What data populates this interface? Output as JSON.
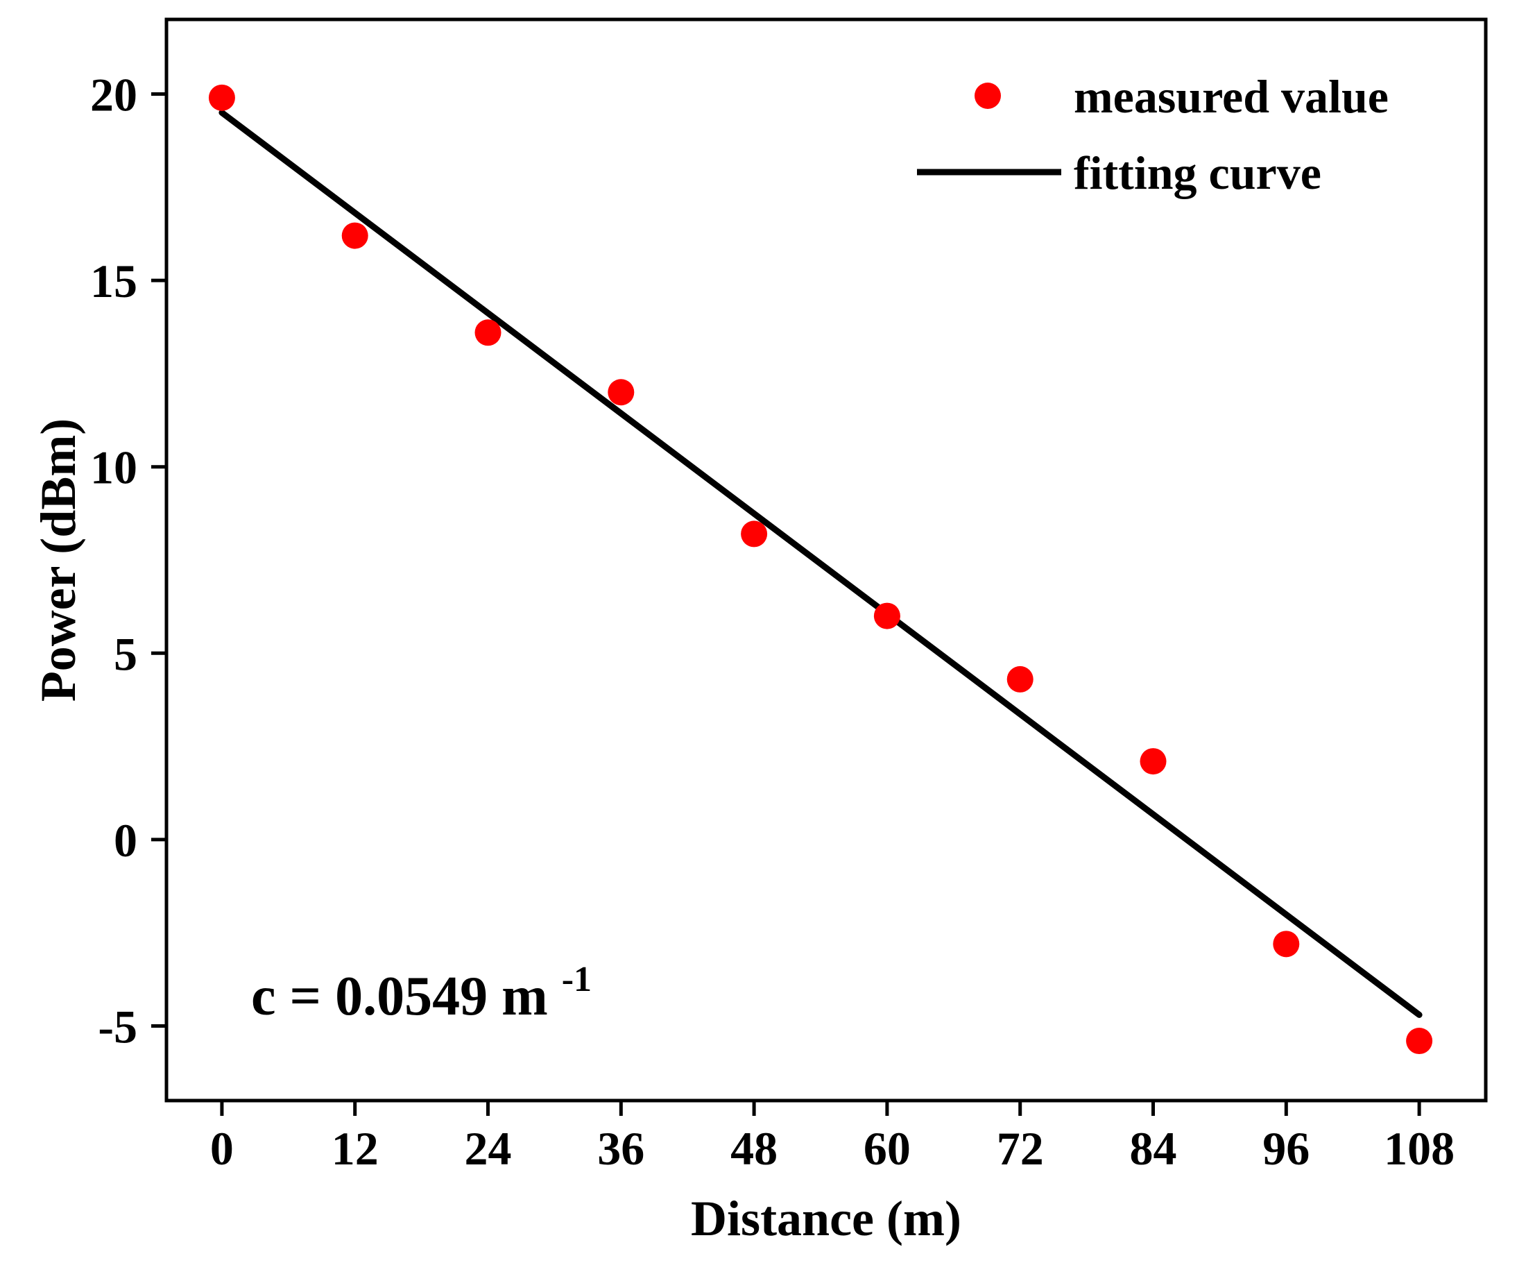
{
  "chart_data": {
    "type": "scatter",
    "title": "",
    "xlabel": "Distance (m)",
    "ylabel": "Power (dBm)",
    "xlim": [
      -5,
      114
    ],
    "ylim": [
      -7,
      22
    ],
    "xticks": [
      0,
      12,
      24,
      36,
      48,
      60,
      72,
      84,
      96,
      108
    ],
    "yticks": [
      -5,
      0,
      5,
      10,
      15,
      20
    ],
    "series": [
      {
        "name": "measured value",
        "kind": "scatter",
        "color": "#ff0000",
        "x": [
          0,
          12,
          24,
          36,
          48,
          60,
          72,
          84,
          96,
          108
        ],
        "y": [
          19.9,
          16.2,
          13.6,
          12.0,
          8.2,
          6.0,
          4.3,
          2.1,
          -2.8,
          -5.4
        ]
      },
      {
        "name": "fitting curve",
        "kind": "line",
        "color": "#000000",
        "x": [
          0,
          108
        ],
        "y": [
          19.5,
          -4.7
        ]
      }
    ],
    "legend": {
      "position": "top-right",
      "entries": [
        "measured value",
        "fitting curve"
      ]
    },
    "annotation": {
      "base": "c = 0.0549 m",
      "superscript": "-1"
    }
  }
}
